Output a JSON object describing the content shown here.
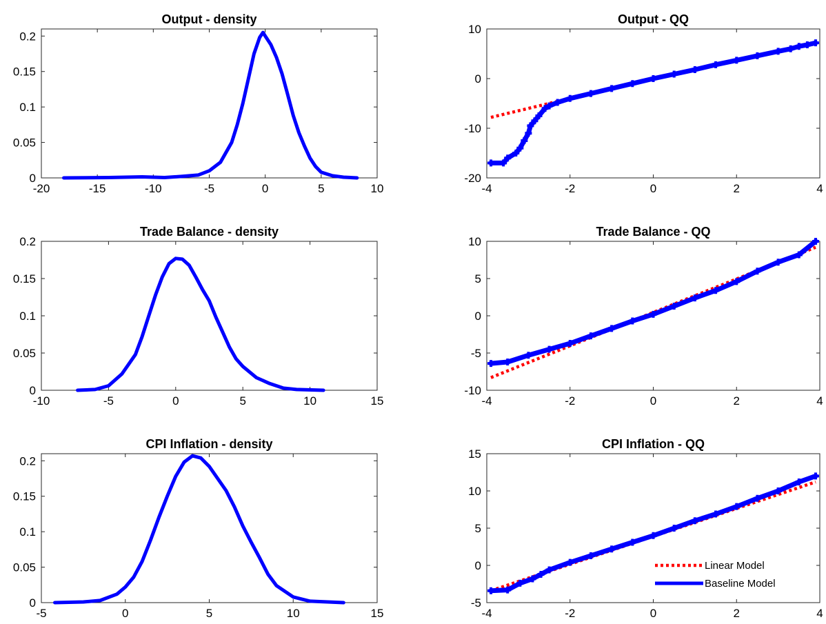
{
  "chart_data": [
    {
      "type": "line",
      "title": "Output - density",
      "xlim": [
        -20,
        10
      ],
      "ylim": [
        0,
        0.21
      ],
      "xticks": [
        "-20",
        "-15",
        "-10",
        "-5",
        "0",
        "5",
        "10"
      ],
      "yticks": [
        "0",
        "0.05",
        "0.1",
        "0.15",
        "0.2"
      ],
      "xtick_values": [
        -20,
        -15,
        -10,
        -5,
        0,
        5,
        10
      ],
      "ytick_values": [
        0,
        0.05,
        0.1,
        0.15,
        0.2
      ],
      "series": [
        {
          "color": "#0000ff",
          "style": "solid",
          "x": [
            -18,
            -14,
            -11,
            -9,
            -7.5,
            -6,
            -5,
            -4,
            -3,
            -2.5,
            -2,
            -1.5,
            -1,
            -0.5,
            -0.2,
            0,
            0.5,
            1,
            1.5,
            2,
            2.5,
            3,
            3.5,
            4,
            4.5,
            5,
            6,
            7,
            8.2
          ],
          "y": [
            0,
            0.0005,
            0.0015,
            0.0005,
            0.002,
            0.004,
            0.01,
            0.022,
            0.05,
            0.075,
            0.105,
            0.14,
            0.175,
            0.198,
            0.205,
            0.2,
            0.188,
            0.17,
            0.147,
            0.118,
            0.088,
            0.064,
            0.045,
            0.028,
            0.016,
            0.008,
            0.003,
            0.001,
            0
          ]
        }
      ]
    },
    {
      "type": "scatter",
      "title": "Output - QQ",
      "xlim": [
        -4,
        4
      ],
      "ylim": [
        -20,
        10
      ],
      "xticks": [
        "-4",
        "-2",
        "0",
        "2",
        "4"
      ],
      "yticks": [
        "-20",
        "-10",
        "0",
        "10"
      ],
      "xtick_values": [
        -4,
        -2,
        0,
        2,
        4
      ],
      "ytick_values": [
        -20,
        -10,
        0,
        10
      ],
      "series": [
        {
          "color": "#ff0000",
          "style": "dotted",
          "x": [
            -3.9,
            -2.3
          ],
          "y": [
            -7.8,
            -4.6
          ]
        },
        {
          "color": "#0000ff",
          "style": "marker-line",
          "x": [
            -3.9,
            -3.6,
            -3.5,
            -3.3,
            -3.2,
            -3.1,
            -3.0,
            -2.95,
            -2.85,
            -2.75,
            -2.6,
            -2.5,
            -2.3,
            -2.0,
            -1.5,
            -1.0,
            -0.5,
            0,
            0.5,
            1.0,
            1.5,
            2.0,
            2.5,
            3.0,
            3.3,
            3.5,
            3.7,
            3.9
          ],
          "y": [
            -17,
            -17,
            -16,
            -15,
            -14,
            -12.5,
            -11,
            -9.5,
            -8.5,
            -7.5,
            -6,
            -5.5,
            -4.8,
            -4,
            -3,
            -2,
            -1,
            0,
            0.9,
            1.8,
            2.8,
            3.7,
            4.6,
            5.5,
            6,
            6.5,
            6.8,
            7.2
          ]
        }
      ]
    },
    {
      "type": "line",
      "title": "Trade Balance - density",
      "xlim": [
        -10,
        15
      ],
      "ylim": [
        0,
        0.2
      ],
      "xticks": [
        "-10",
        "-5",
        "0",
        "5",
        "10",
        "15"
      ],
      "yticks": [
        "0",
        "0.05",
        "0.1",
        "0.15",
        "0.2"
      ],
      "xtick_values": [
        -10,
        -5,
        0,
        5,
        10,
        15
      ],
      "ytick_values": [
        0,
        0.05,
        0.1,
        0.15,
        0.2
      ],
      "series": [
        {
          "color": "#0000ff",
          "style": "solid",
          "x": [
            -7.3,
            -6,
            -5,
            -4,
            -3,
            -2.5,
            -2,
            -1.5,
            -1,
            -0.5,
            0,
            0.5,
            1,
            1.5,
            2,
            2.5,
            3,
            3.5,
            4,
            4.5,
            5,
            6,
            7,
            8,
            9,
            11
          ],
          "y": [
            0,
            0.001,
            0.006,
            0.022,
            0.048,
            0.072,
            0.1,
            0.128,
            0.152,
            0.17,
            0.177,
            0.176,
            0.168,
            0.152,
            0.135,
            0.12,
            0.098,
            0.078,
            0.058,
            0.042,
            0.032,
            0.017,
            0.009,
            0.003,
            0.001,
            0
          ]
        }
      ]
    },
    {
      "type": "scatter",
      "title": "Trade Balance - QQ",
      "xlim": [
        -4,
        4
      ],
      "ylim": [
        -10,
        10
      ],
      "xticks": [
        "-4",
        "-2",
        "0",
        "2",
        "4"
      ],
      "yticks": [
        "-10",
        "-5",
        "0",
        "5",
        "10"
      ],
      "xtick_values": [
        -4,
        -2,
        0,
        2,
        4
      ],
      "ytick_values": [
        -10,
        -5,
        0,
        5,
        10
      ],
      "series": [
        {
          "color": "#ff0000",
          "style": "dotted",
          "x": [
            -3.9,
            3.9
          ],
          "y": [
            -8.3,
            9.2
          ]
        },
        {
          "color": "#0000ff",
          "style": "marker-line",
          "x": [
            -3.9,
            -3.5,
            -3.0,
            -2.5,
            -2.0,
            -1.5,
            -1.0,
            -0.5,
            0,
            0.5,
            1.0,
            1.5,
            2.0,
            2.5,
            3.0,
            3.5,
            3.9
          ],
          "y": [
            -6.4,
            -6.2,
            -5.3,
            -4.5,
            -3.7,
            -2.7,
            -1.7,
            -0.7,
            0.2,
            1.3,
            2.4,
            3.4,
            4.6,
            6.0,
            7.2,
            8.2,
            10
          ]
        }
      ]
    },
    {
      "type": "line",
      "title": "CPI Inflation - density",
      "xlim": [
        -5,
        15
      ],
      "ylim": [
        0,
        0.21
      ],
      "xticks": [
        "-5",
        "0",
        "5",
        "10",
        "15"
      ],
      "yticks": [
        "0",
        "0.05",
        "0.1",
        "0.15",
        "0.2"
      ],
      "xtick_values": [
        -5,
        0,
        5,
        10,
        15
      ],
      "ytick_values": [
        0,
        0.05,
        0.1,
        0.15,
        0.2
      ],
      "series": [
        {
          "color": "#0000ff",
          "style": "solid",
          "x": [
            -4.2,
            -2.5,
            -1.5,
            -0.5,
            0,
            0.5,
            1,
            1.5,
            2,
            2.5,
            3,
            3.5,
            4,
            4.5,
            5,
            5.5,
            6,
            6.5,
            7,
            7.5,
            8,
            8.5,
            9,
            10,
            11,
            13
          ],
          "y": [
            0,
            0.001,
            0.003,
            0.012,
            0.022,
            0.036,
            0.058,
            0.088,
            0.12,
            0.15,
            0.178,
            0.198,
            0.207,
            0.204,
            0.192,
            0.175,
            0.158,
            0.135,
            0.108,
            0.085,
            0.063,
            0.04,
            0.024,
            0.008,
            0.002,
            0
          ]
        }
      ]
    },
    {
      "type": "scatter",
      "title": "CPI Inflation - QQ",
      "xlim": [
        -4,
        4
      ],
      "ylim": [
        -5,
        15
      ],
      "xticks": [
        "-4",
        "-2",
        "0",
        "2",
        "4"
      ],
      "yticks": [
        "-5",
        "0",
        "5",
        "10",
        "15"
      ],
      "xtick_values": [
        -4,
        -2,
        0,
        2,
        4
      ],
      "ytick_values": [
        -5,
        0,
        5,
        10,
        15
      ],
      "legend": {
        "placement": "bottom-right",
        "entries": [
          {
            "label": "Linear Model",
            "color": "#ff0000",
            "style": "dotted"
          },
          {
            "label": "Baseline Model",
            "color": "#0000ff",
            "style": "solid"
          }
        ]
      },
      "series": [
        {
          "color": "#ff0000",
          "style": "dotted",
          "x": [
            -3.9,
            3.9
          ],
          "y": [
            -3.4,
            11.2
          ]
        },
        {
          "color": "#0000ff",
          "style": "marker-line",
          "x": [
            -3.9,
            -3.5,
            -3.2,
            -2.9,
            -2.7,
            -2.5,
            -2.0,
            -1.5,
            -1.0,
            -0.5,
            0,
            0.5,
            1.0,
            1.5,
            2.0,
            2.5,
            3.0,
            3.5,
            3.9
          ],
          "y": [
            -3.4,
            -3.3,
            -2.4,
            -1.8,
            -1.2,
            -0.6,
            0.4,
            1.3,
            2.2,
            3.1,
            4.0,
            5.0,
            6.0,
            6.9,
            7.9,
            9.0,
            10.0,
            11.2,
            12.0
          ]
        }
      ]
    }
  ]
}
